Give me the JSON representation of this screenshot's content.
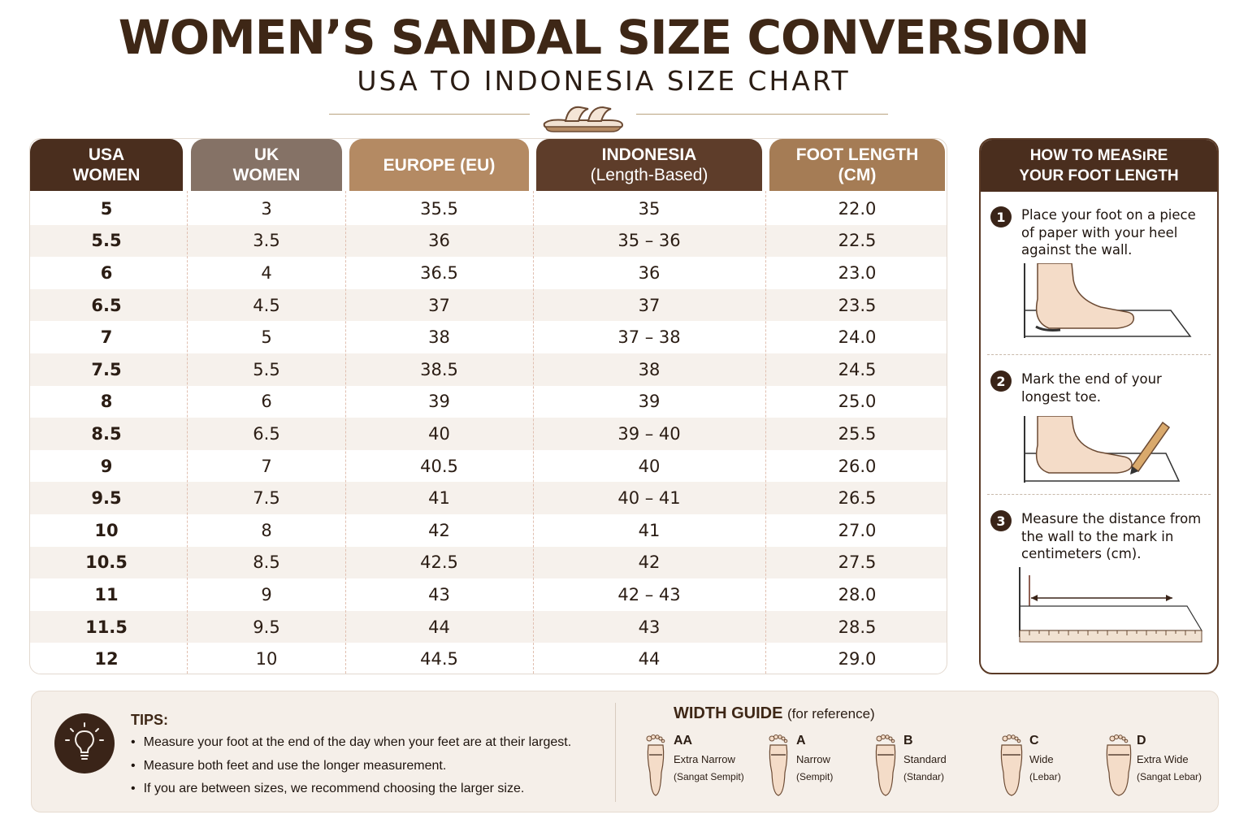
{
  "header": {
    "title": "WOMEN’S SANDAL SIZE CONVERSION",
    "subtitle": "USA TO INDONESIA SIZE CHART"
  },
  "table": {
    "columns": [
      {
        "line1": "USA",
        "line2": "WOMEN",
        "color": "#4a2e1e"
      },
      {
        "line1": "UK",
        "line2": "WOMEN",
        "color": "#857266"
      },
      {
        "line1": "EUROPE (EU)",
        "line2": "",
        "color": "#b48a63"
      },
      {
        "line1": "INDONESIA",
        "line2": "(Length-Based)",
        "color": "#5e3d2a"
      },
      {
        "line1": "FOOT LENGTH",
        "line2": "(CM)",
        "color": "#a57c55"
      }
    ],
    "rows": [
      [
        "5",
        "3",
        "35.5",
        "35",
        "22.0"
      ],
      [
        "5.5",
        "3.5",
        "36",
        "35 – 36",
        "22.5"
      ],
      [
        "6",
        "4",
        "36.5",
        "36",
        "23.0"
      ],
      [
        "6.5",
        "4.5",
        "37",
        "37",
        "23.5"
      ],
      [
        "7",
        "5",
        "38",
        "37 – 38",
        "24.0"
      ],
      [
        "7.5",
        "5.5",
        "38.5",
        "38",
        "24.5"
      ],
      [
        "8",
        "6",
        "39",
        "39",
        "25.0"
      ],
      [
        "8.5",
        "6.5",
        "40",
        "39 – 40",
        "25.5"
      ],
      [
        "9",
        "7",
        "40.5",
        "40",
        "26.0"
      ],
      [
        "9.5",
        "7.5",
        "41",
        "40 – 41",
        "26.5"
      ],
      [
        "10",
        "8",
        "42",
        "41",
        "27.0"
      ],
      [
        "10.5",
        "8.5",
        "42.5",
        "42",
        "27.5"
      ],
      [
        "11",
        "9",
        "43",
        "42 – 43",
        "28.0"
      ],
      [
        "11.5",
        "9.5",
        "44",
        "43",
        "28.5"
      ],
      [
        "12",
        "10",
        "44.5",
        "44",
        "29.0"
      ]
    ]
  },
  "measure": {
    "title_line1": "HOW TO MEASıRE",
    "title_line2": "YOUR FOOT LENGTH",
    "steps": [
      {
        "num": "1",
        "text": "Place your foot on a piece of paper with your heel against the wall."
      },
      {
        "num": "2",
        "text": "Mark the end of your longest toe."
      },
      {
        "num": "3",
        "text": "Measure the distance from the wall to the mark in centimeters (cm)."
      }
    ]
  },
  "tips": {
    "title": "TIPS:",
    "items": [
      "Measure your foot at the end of the day when your feet are at their largest.",
      "Measure both feet and use the longer measurement.",
      "If you are between sizes, we recommend choosing the larger size."
    ]
  },
  "width_guide": {
    "title": "WIDTH GUIDE",
    "note": "(for reference)",
    "items": [
      {
        "code": "AA",
        "en": "Extra Narrow",
        "id": "(Sangat Sempit)"
      },
      {
        "code": "A",
        "en": "Narrow",
        "id": "(Sempit)"
      },
      {
        "code": "B",
        "en": "Standard",
        "id": "(Standar)"
      },
      {
        "code": "C",
        "en": "Wide",
        "id": "(Lebar)"
      },
      {
        "code": "D",
        "en": "Extra Wide",
        "id": "(Sangat Lebar)"
      }
    ]
  },
  "icons": [
    "sandal-icon",
    "lightbulb-icon",
    "foot-icon",
    "pencil-icon",
    "ruler-icon"
  ],
  "colors": {
    "dark_brown": "#4a2e1e",
    "taupe": "#857266",
    "tan": "#b48a63",
    "row_alt": "#f6f1ec",
    "panel_bg": "#f5efe9"
  }
}
